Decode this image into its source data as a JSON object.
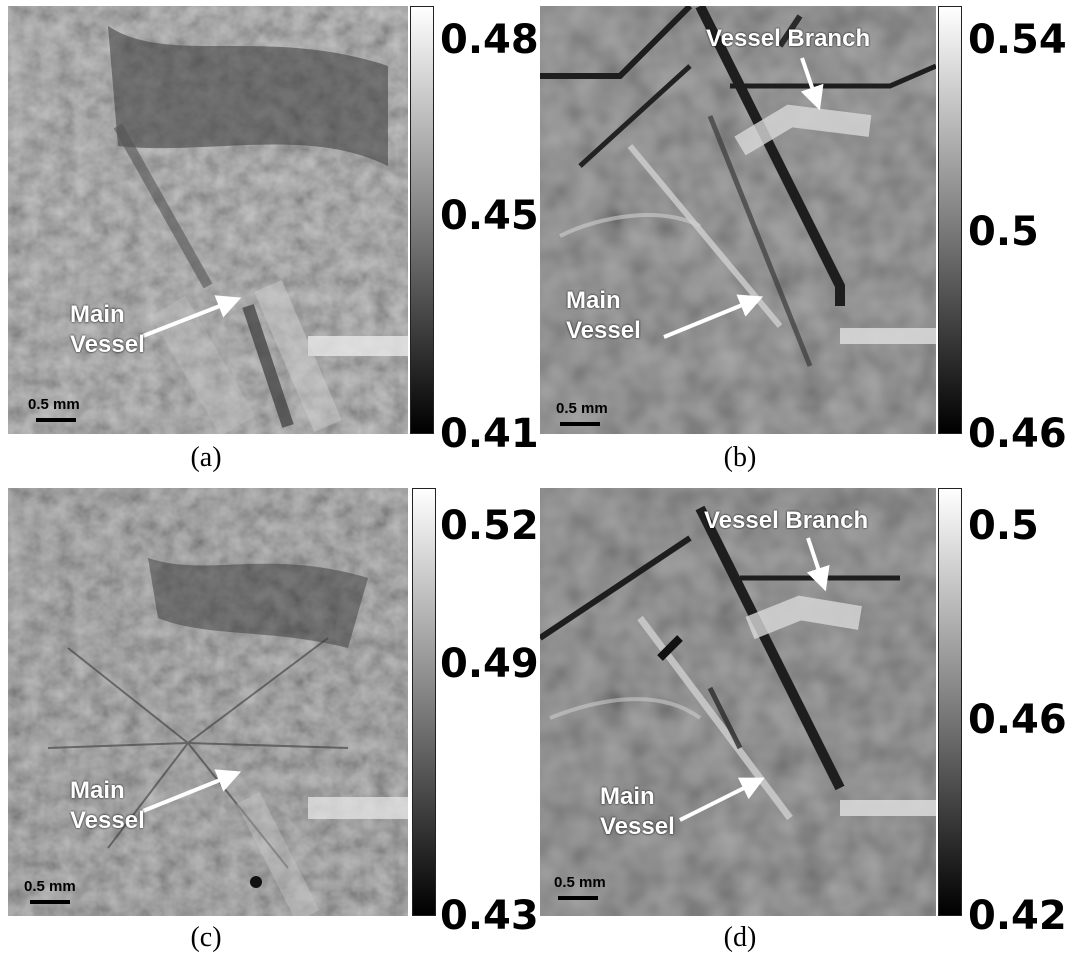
{
  "panels": [
    {
      "caption": "(a)",
      "colorbar_ticks": [
        "0.48",
        "0.45",
        "0.41"
      ],
      "labels": {
        "main_vessel": [
          "Main",
          "Vessel"
        ]
      },
      "scale_bar": "0.5 mm"
    },
    {
      "caption": "(b)",
      "colorbar_ticks": [
        "0.54",
        "0.5",
        "0.46"
      ],
      "labels": {
        "main_vessel": [
          "Main",
          "Vessel"
        ],
        "branch": "Vessel Branch"
      },
      "scale_bar": "0.5 mm"
    },
    {
      "caption": "(c)",
      "colorbar_ticks": [
        "0.52",
        "0.49",
        "0.43"
      ],
      "labels": {
        "main_vessel": [
          "Main",
          "Vessel"
        ]
      },
      "scale_bar": "0.5 mm"
    },
    {
      "caption": "(d)",
      "colorbar_ticks": [
        "0.5",
        "0.46",
        "0.42"
      ],
      "labels": {
        "main_vessel": [
          "Main",
          "Vessel"
        ],
        "branch": "Vessel Branch"
      },
      "scale_bar": "0.5 mm"
    }
  ],
  "colormap": {
    "top": "#ffffff",
    "bottom": "#000000"
  }
}
